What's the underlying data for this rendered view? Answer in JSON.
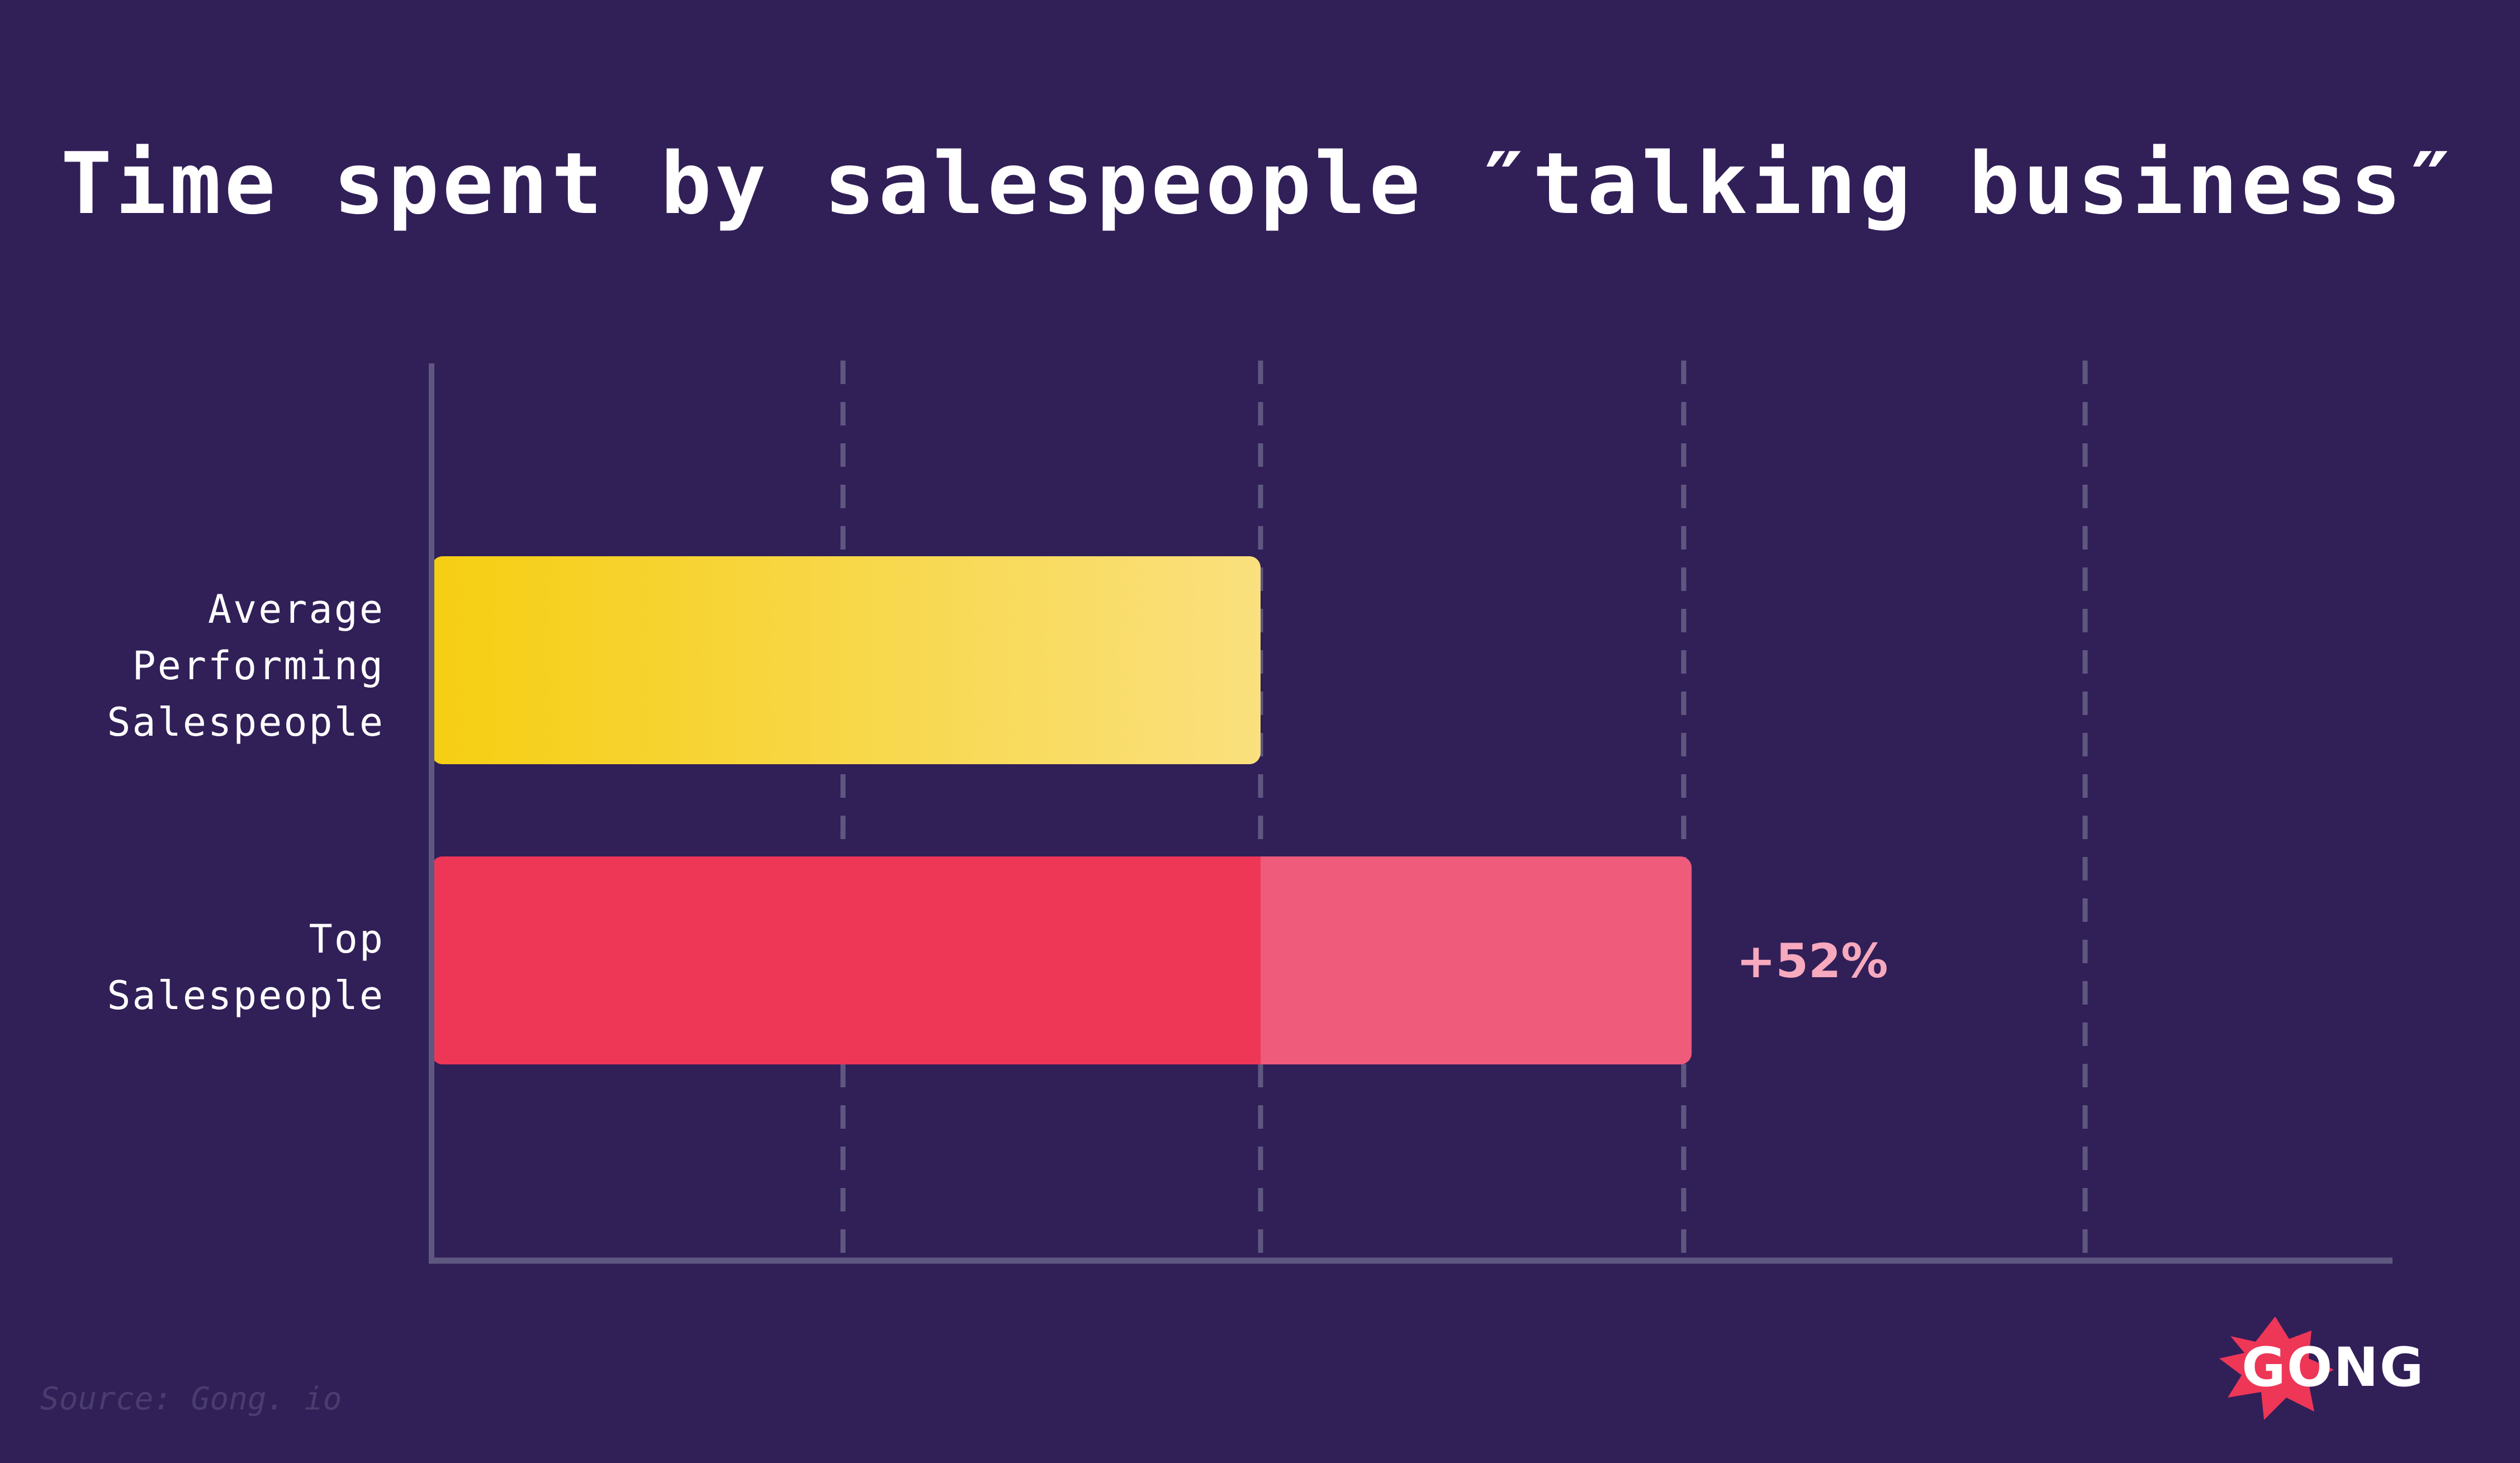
{
  "chart_data": {
    "type": "bar",
    "orientation": "horizontal",
    "title": "Time spent by salespeople ″talking business″",
    "categories": [
      [
        "Average",
        "Performing",
        "Salespeople"
      ],
      [
        "Top",
        "Salespeople"
      ]
    ],
    "values": [
      1.0,
      1.52
    ],
    "xlim": [
      0,
      2.0
    ],
    "gridlines": [
      0.5,
      1.0,
      1.52,
      2.0
    ],
    "grid": "dashed vertical",
    "annotations": [
      {
        "category_index": 1,
        "text": "+52%"
      }
    ],
    "colors": {
      "background": "#311f58",
      "average_bar_start": "#f6ce12",
      "average_bar_end": "#fae07e",
      "top_bar": "#ee3657",
      "top_bar_extra": "#ef5b7a",
      "annotation": "#f7a9bd",
      "axis": "#5e5880"
    }
  },
  "source": "Source: Gong. io",
  "logo": {
    "text": "GONG",
    "color": "#ee3657",
    "icon": "starburst-icon"
  }
}
